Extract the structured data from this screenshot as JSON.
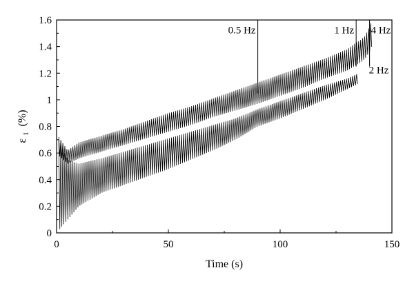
{
  "chart_data": {
    "type": "line",
    "title": "",
    "xlabel": "Time (s)",
    "ylabel": "ε",
    "ylabel_subscript": "1",
    "ylabel_unit": "(%)",
    "xlim": [
      0,
      150
    ],
    "ylim": [
      0,
      1.6
    ],
    "xticks": [
      0,
      50,
      100,
      150
    ],
    "yticks": [
      0,
      0.2,
      0.4,
      0.6,
      0.8,
      1,
      1.2,
      1.4,
      1.6
    ],
    "xtick_labels": [
      "0",
      "50",
      "100",
      "150"
    ],
    "ytick_labels": [
      "0",
      "0.2",
      "0.4",
      "0.6",
      "0.8",
      "1",
      "1.2",
      "1.4",
      "1.6"
    ],
    "grid": false,
    "color": "#000000",
    "annotations": [
      {
        "text": "0.5 Hz",
        "x": 90,
        "y": 1.5
      },
      {
        "text": "1 Hz",
        "x": 134,
        "y": 1.5
      },
      {
        "text": "4 Hz",
        "x": 140,
        "y": 1.5
      },
      {
        "text": "2 Hz",
        "x": 136,
        "y": 1.2
      }
    ],
    "series": [
      {
        "x": [
          1,
          5,
          10,
          20,
          30,
          40,
          50,
          60,
          70,
          80,
          90,
          100,
          110,
          120,
          130,
          134,
          136,
          138,
          140,
          141
        ],
        "y_max": [
          0.72,
          0.62,
          0.68,
          0.73,
          0.78,
          0.84,
          0.9,
          0.95,
          1.01,
          1.07,
          1.13,
          1.19,
          1.25,
          1.31,
          1.38,
          1.43,
          1.45,
          1.48,
          1.55,
          1.6
        ],
        "y_min": [
          0.58,
          0.52,
          0.56,
          0.61,
          0.66,
          0.71,
          0.76,
          0.81,
          0.87,
          0.92,
          0.97,
          1.03,
          1.09,
          1.16,
          1.22,
          1.26,
          1.28,
          1.31,
          1.36,
          1.4
        ]
      },
      {
        "x": [
          1,
          5,
          10,
          20,
          30,
          40,
          50,
          60,
          70,
          80,
          90,
          100,
          110,
          120,
          130,
          135
        ],
        "y_max": [
          0.7,
          0.55,
          0.52,
          0.56,
          0.61,
          0.66,
          0.71,
          0.76,
          0.81,
          0.86,
          0.93,
          0.99,
          1.05,
          1.11,
          1.16,
          1.2
        ],
        "y_min": [
          0.02,
          0.1,
          0.2,
          0.3,
          0.36,
          0.42,
          0.48,
          0.55,
          0.62,
          0.7,
          0.8,
          0.86,
          0.93,
          1.0,
          1.08,
          1.12
        ]
      }
    ]
  }
}
